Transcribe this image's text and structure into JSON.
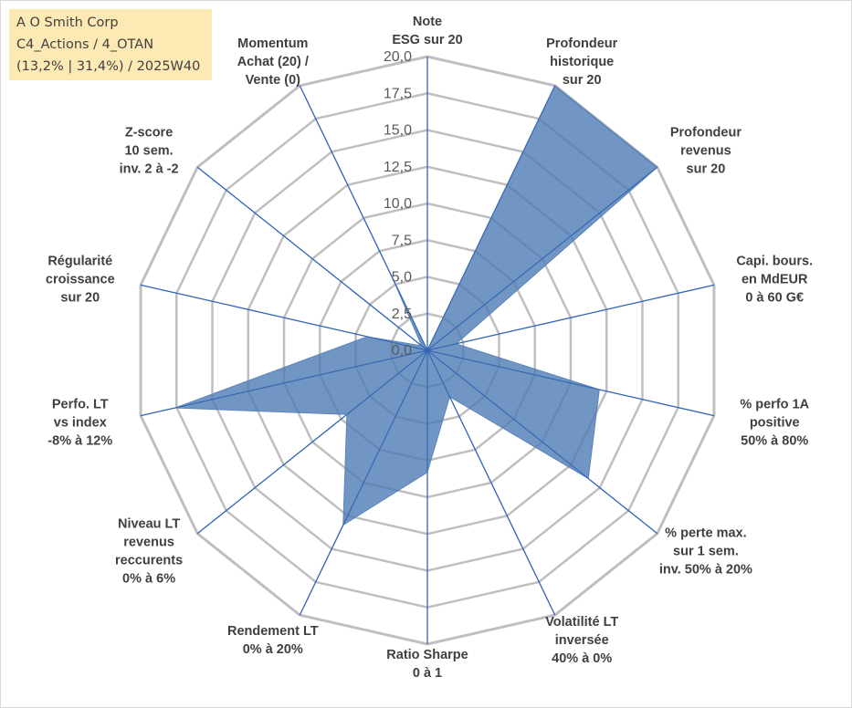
{
  "title_box": {
    "line1": "A O Smith Corp",
    "line2": "C4_Actions / 4_OTAN",
    "line3": "(13,2% | 31,4%) / 2025W40"
  },
  "chart_data": {
    "type": "radar",
    "title": "A O Smith Corp",
    "rmin": 0,
    "rmax": 20,
    "ticks": [
      "0,0",
      "2,5",
      "5,0",
      "7,5",
      "10,0",
      "12,5",
      "15,0",
      "17,5",
      "20,0"
    ],
    "tick_values": [
      0,
      2.5,
      5,
      7.5,
      10,
      12.5,
      15,
      17.5,
      20
    ],
    "grid": true,
    "axes": [
      {
        "label": [
          "Note",
          "ESG sur 20"
        ],
        "value": 0
      },
      {
        "label": [
          "Profondeur",
          "historique",
          "sur 20"
        ],
        "value": 20
      },
      {
        "label": [
          "Profondeur",
          "revenus",
          "sur 20"
        ],
        "value": 20
      },
      {
        "label": [
          "Capi. bours.",
          "en MdEUR",
          "0 à 60 G€"
        ],
        "value": 2
      },
      {
        "label": [
          "% perfo 1A",
          "positive",
          "50% à 80%"
        ],
        "value": 12
      },
      {
        "label": [
          "% perte max.",
          "sur 1 sem.",
          "inv. 50% à 20%"
        ],
        "value": 14
      },
      {
        "label": [
          "Volatilité LT",
          "inversée",
          "40% à 0%"
        ],
        "value": 3.5
      },
      {
        "label": [
          "Ratio Sharpe",
          "0 à 1"
        ],
        "value": 8.3
      },
      {
        "label": [
          "Rendement LT",
          "0% à 20%"
        ],
        "value": 13.2
      },
      {
        "label": [
          "Niveau LT",
          "revenus",
          "reccurents",
          "0% à 6%"
        ],
        "value": 7
      },
      {
        "label": [
          "Perfo. LT",
          "vs index",
          "-8% à 12%"
        ],
        "value": 17.6
      },
      {
        "label": [
          "Régularité",
          "croissance",
          "sur 20"
        ],
        "value": 4.2
      },
      {
        "label": [
          "Z-score",
          "10 sem.",
          "inv. 2 à -2"
        ],
        "value": 0.5
      },
      {
        "label": [
          "Momentum",
          "Achat (20) /",
          "Vente (0)"
        ],
        "value": 5.5
      }
    ],
    "series": [
      {
        "name": "A O Smith Corp",
        "color": "#4f7cb4"
      }
    ]
  }
}
